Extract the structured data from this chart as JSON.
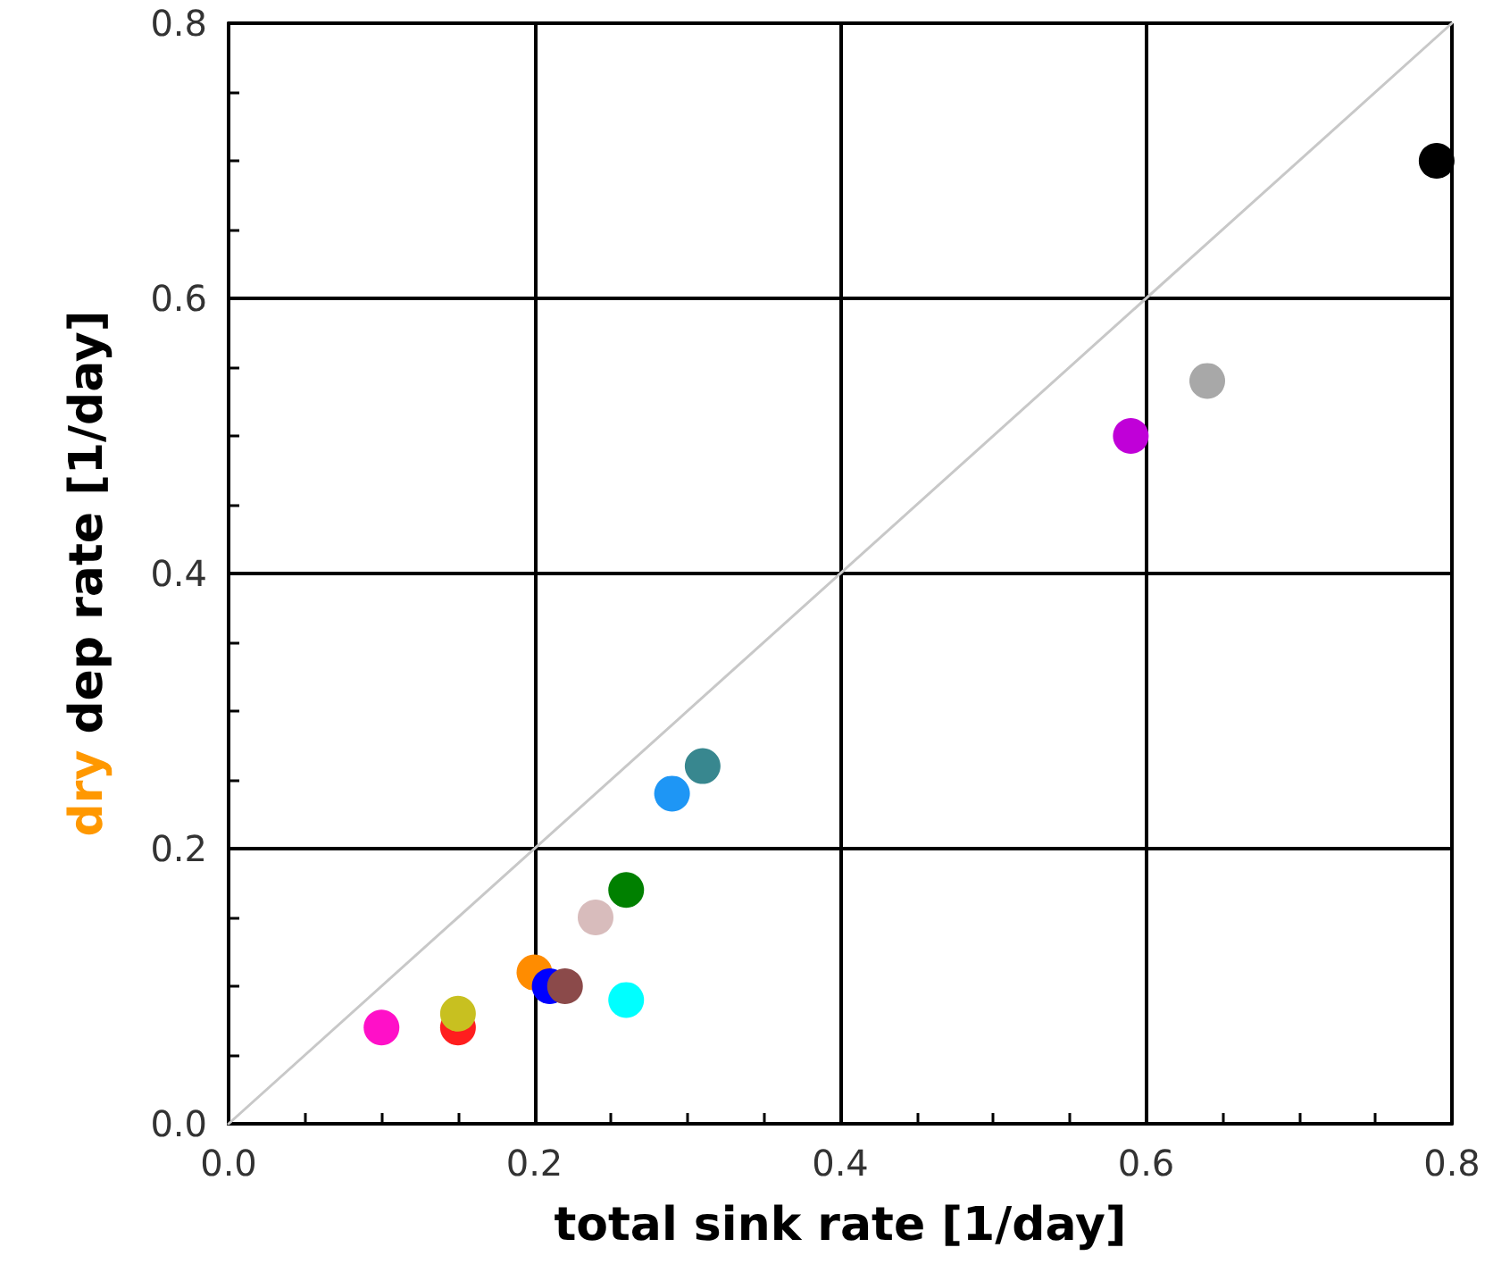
{
  "chart_data": {
    "type": "scatter",
    "xlabel": "total sink rate [1/day]",
    "ylabel": "dry dep rate [1/day]",
    "xlim": [
      0,
      0.8
    ],
    "ylim": [
      0,
      0.8
    ],
    "xticks": [
      {
        "value": 0,
        "label": "0.0"
      },
      {
        "value": 0.2,
        "label": "0.2"
      },
      {
        "value": 0.4,
        "label": "0.4"
      },
      {
        "value": 0.6,
        "label": "0.6"
      },
      {
        "value": 0.8,
        "label": "0.8"
      }
    ],
    "yticks": [
      {
        "value": 0,
        "label": "0.0"
      },
      {
        "value": 0.2,
        "label": "0.2"
      },
      {
        "value": 0.4,
        "label": "0.4"
      },
      {
        "value": 0.6,
        "label": "0.6"
      },
      {
        "value": 0.8,
        "label": "0.8"
      }
    ],
    "grid": true,
    "marker": "circle",
    "series": [
      {
        "type": "line",
        "color": "#c8c8c8",
        "x": [
          0,
          0.8
        ],
        "values": [
          0,
          0.8
        ],
        "marker": "none"
      },
      {
        "x": [
          0.79,
          0.64,
          0.59,
          0.31,
          0.29,
          0.26,
          0.24,
          0.2,
          0.21,
          0.22,
          0.26,
          0.15,
          0.15,
          0.1
        ],
        "values": [
          0.7,
          0.54,
          0.5,
          0.26,
          0.24,
          0.17,
          0.15,
          0.11,
          0.1,
          0.1,
          0.09,
          0.07,
          0.08,
          0.07
        ],
        "colors": [
          "#000000",
          "#a8a8a8",
          "#c000d8",
          "#38878f",
          "#1e96f5",
          "#008000",
          "#d8bcbc",
          "#ff8c00",
          "#0000ff",
          "#8b4a4a",
          "#00ffff",
          "#ff1e1e",
          "#c8c020",
          "#ff10c8"
        ]
      }
    ]
  }
}
